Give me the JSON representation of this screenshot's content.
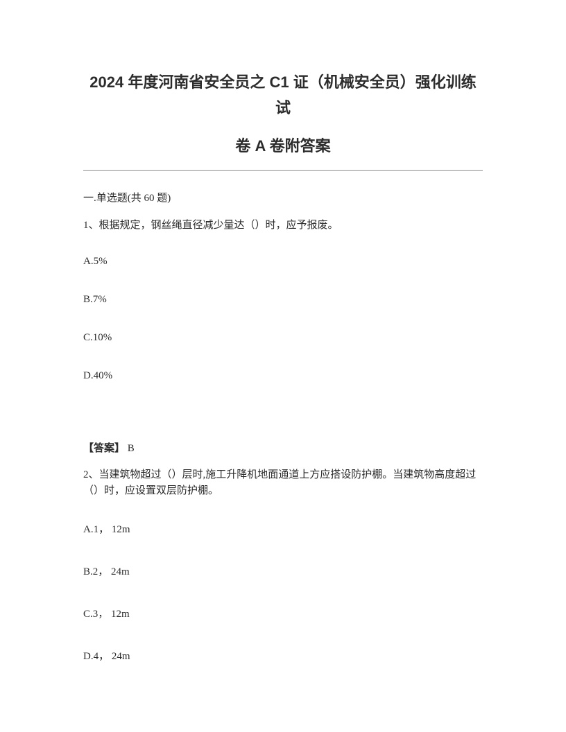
{
  "title_line1": "2024 年度河南省安全员之 C1 证（机械安全员）强化训练试",
  "title_line2": "卷 A 卷附答案",
  "section_header": "一.单选题(共 60 题)",
  "question1": {
    "text": "1、根据规定，钢丝绳直径减少量达（）时，应予报废。",
    "options": {
      "a": "A.5%",
      "b": "B.7%",
      "c": "C.10%",
      "d": "D.40%"
    },
    "answer_label": "【答案】",
    "answer_value": " B"
  },
  "question2": {
    "text": "2、当建筑物超过（）层时,施工升降机地面通道上方应搭设防护棚。当建筑物高度超过（）时，应设置双层防护棚。",
    "options": {
      "a": "A.1， 12m",
      "b": "B.2， 24m",
      "c": "C.3， 12m",
      "d": "D.4， 24m"
    }
  }
}
